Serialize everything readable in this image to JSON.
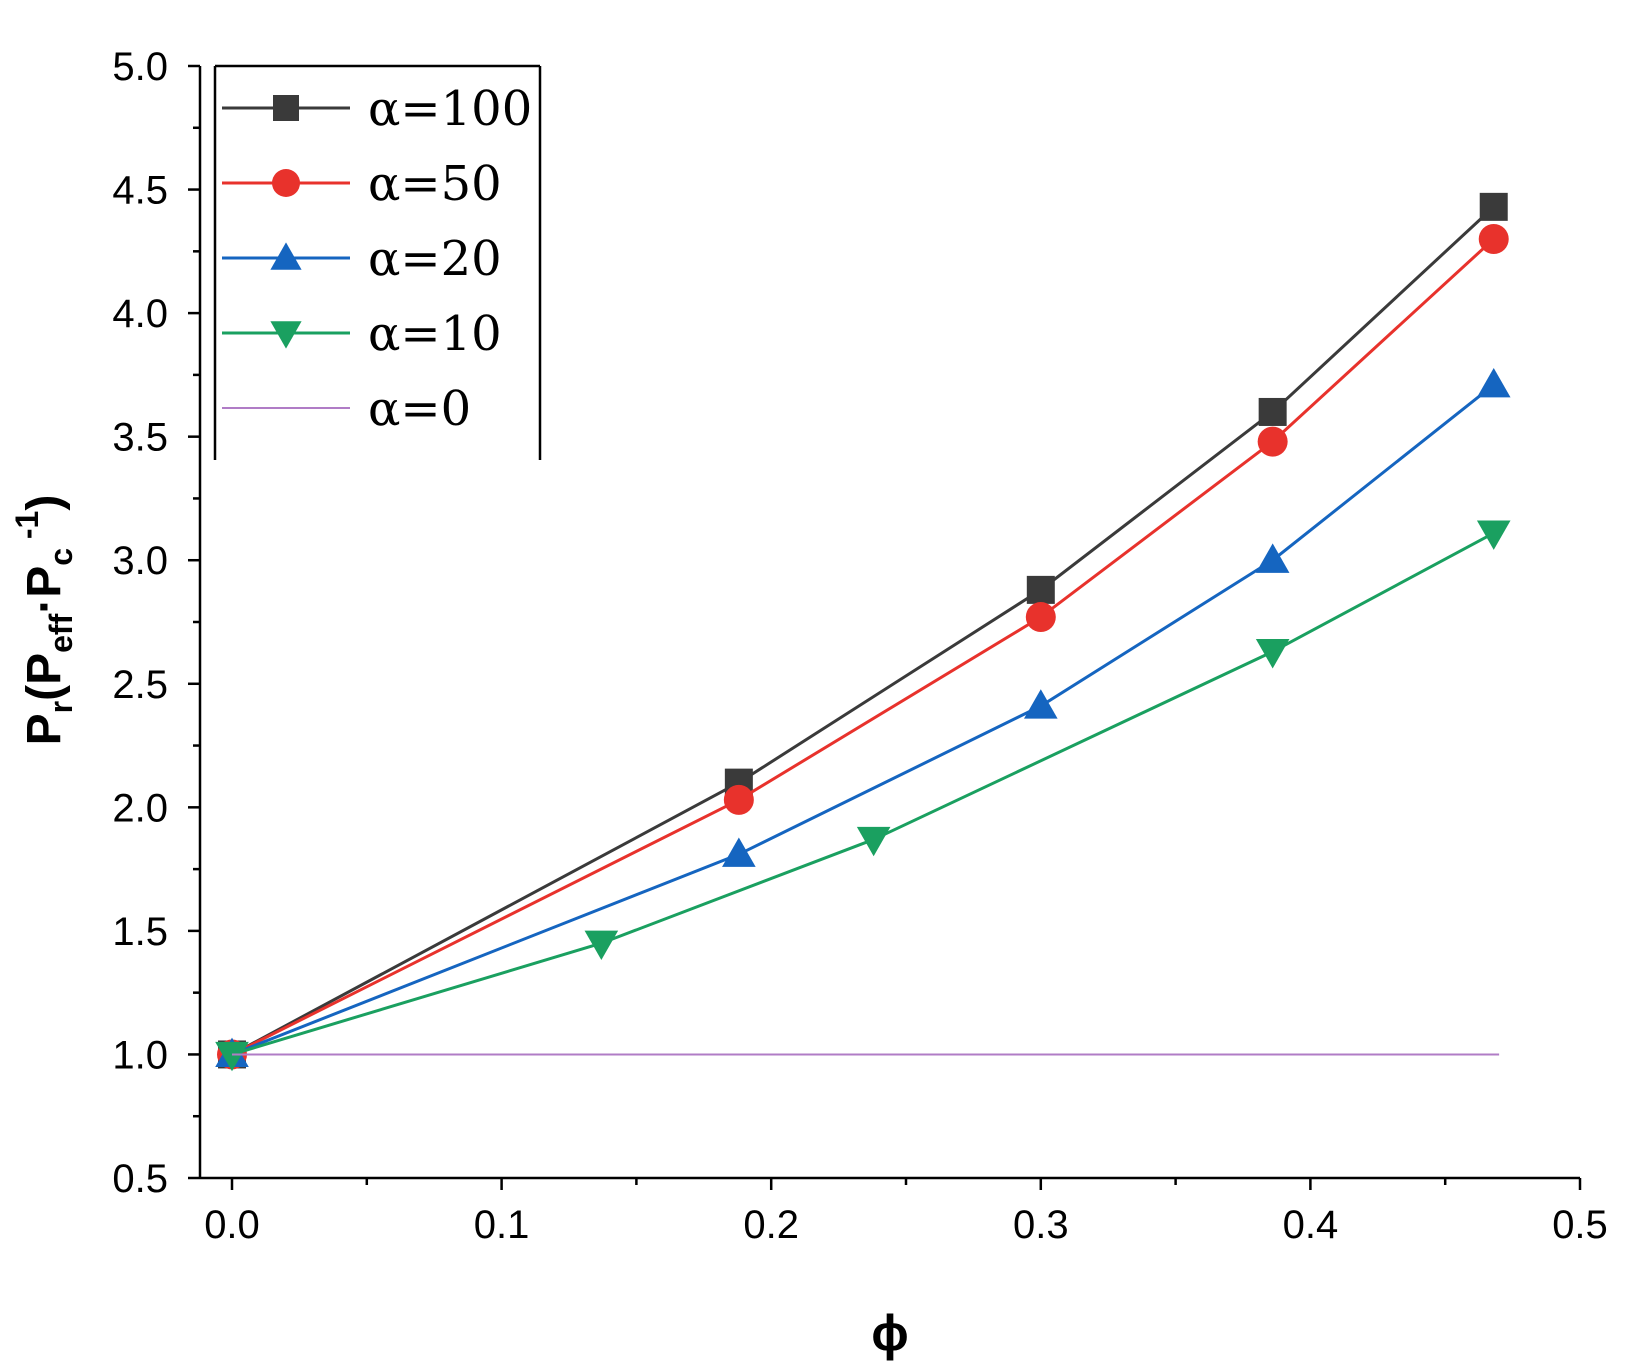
{
  "chart_data": {
    "type": "line",
    "title": "",
    "xlabel": "ϕ",
    "ylabel": {
      "base": "P",
      "sub1": "r",
      "open": "(P",
      "sub2": "eff",
      "mid": "·P",
      "sub3": "c",
      "sup": " -1",
      "close": ")"
    },
    "xlim": [
      0,
      0.5
    ],
    "ylim": [
      0.5,
      5.0
    ],
    "xticks": [
      "0.0",
      "0.1",
      "0.2",
      "0.3",
      "0.4",
      "0.5"
    ],
    "yticks": [
      "0.5",
      "1.0",
      "1.5",
      "2.0",
      "2.5",
      "3.0",
      "3.5",
      "4.0",
      "4.5",
      "5.0"
    ],
    "legend_position": "top-left",
    "series": [
      {
        "name": "α=100",
        "color": "#3a3a3a",
        "marker": "square",
        "x": [
          0,
          0.188,
          0.3,
          0.386,
          0.468
        ],
        "y": [
          1.0,
          2.1,
          2.88,
          3.6,
          4.43
        ]
      },
      {
        "name": "α=50",
        "color": "#e8322c",
        "marker": "circle",
        "x": [
          0,
          0.188,
          0.3,
          0.386,
          0.468
        ],
        "y": [
          1.0,
          2.03,
          2.77,
          3.48,
          4.3
        ]
      },
      {
        "name": "α=20",
        "color": "#1565c0",
        "marker": "triangle-up",
        "x": [
          0,
          0.188,
          0.3,
          0.386,
          0.468
        ],
        "y": [
          1.0,
          1.81,
          2.41,
          3.0,
          3.71
        ]
      },
      {
        "name": "α=10",
        "color": "#1aa060",
        "marker": "triangle-down",
        "x": [
          0,
          0.137,
          0.238,
          0.386,
          0.468
        ],
        "y": [
          1.0,
          1.45,
          1.87,
          2.63,
          3.11
        ]
      },
      {
        "name": "α=0",
        "color": "#b07cc6",
        "marker": "none",
        "x": [
          0,
          0.47
        ],
        "y": [
          1.0,
          1.0
        ]
      }
    ]
  }
}
